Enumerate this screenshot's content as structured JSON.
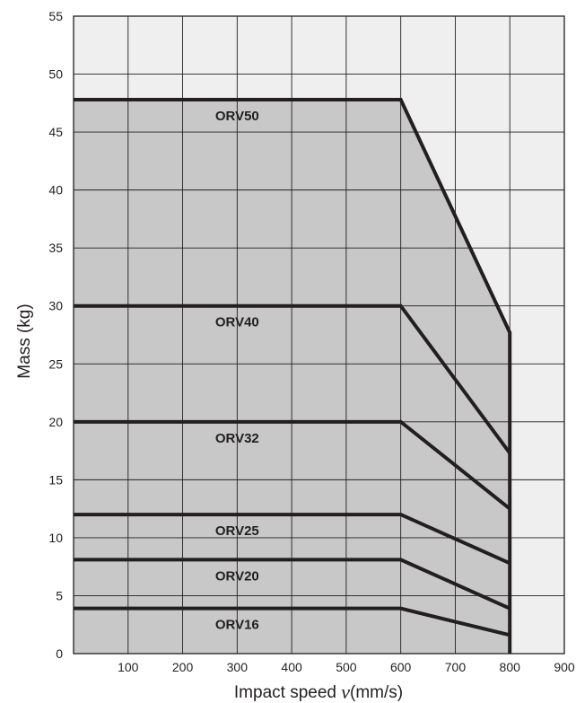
{
  "chart_data": {
    "type": "line",
    "title": "",
    "xlabel_prefix": "Impact speed ",
    "xlabel_var": "v",
    "xlabel_suffix": "(mm/s)",
    "ylabel": "Mass (kg)",
    "xlim": [
      0,
      900
    ],
    "ylim": [
      0,
      55
    ],
    "x_ticks": [
      100,
      200,
      300,
      400,
      500,
      600,
      700,
      800,
      900
    ],
    "y_ticks": [
      0,
      5,
      10,
      15,
      20,
      25,
      30,
      35,
      40,
      45,
      50,
      55
    ],
    "grid": true,
    "shaded_region": "area under ORV50 envelope",
    "colors": {
      "plot_background": "#efefef",
      "shaded_area": "#c8c8c8",
      "grid": "#231f20",
      "series_line": "#231f20"
    },
    "series": [
      {
        "name": "ORV50",
        "x": [
          0,
          600,
          800,
          800
        ],
        "y": [
          47.8,
          47.8,
          27.7,
          0
        ]
      },
      {
        "name": "ORV40",
        "x": [
          0,
          600,
          800
        ],
        "y": [
          30,
          30,
          17.3
        ]
      },
      {
        "name": "ORV32",
        "x": [
          0,
          600,
          800
        ],
        "y": [
          20,
          20,
          12.5
        ]
      },
      {
        "name": "ORV25",
        "x": [
          0,
          600,
          800
        ],
        "y": [
          12,
          12,
          7.8
        ]
      },
      {
        "name": "ORV20",
        "x": [
          0,
          600,
          800
        ],
        "y": [
          8.1,
          8.1,
          3.9
        ]
      },
      {
        "name": "ORV16",
        "x": [
          0,
          600,
          800
        ],
        "y": [
          3.9,
          3.9,
          1.6
        ]
      }
    ]
  }
}
